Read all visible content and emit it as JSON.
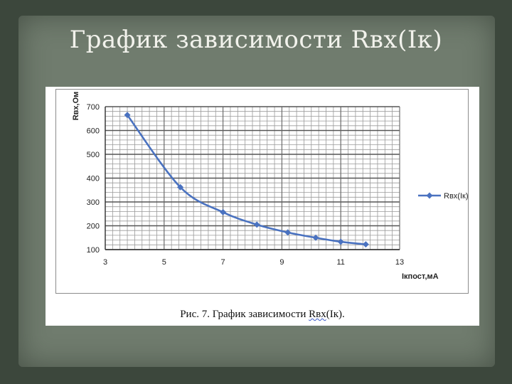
{
  "slide": {
    "title": "График зависимости Rвх(Iк)",
    "caption_prefix": "Рис. 7. График зависимости ",
    "caption_term": "Rвх",
    "caption_suffix": "(Iк).",
    "colors": {
      "background": "#3c473c",
      "panel": "#707c6e",
      "series": "#4a72c0"
    }
  },
  "chart_data": {
    "type": "line",
    "xlabel": "Iкпост,мА",
    "ylabel": "Rвх,Ом",
    "xlim": [
      3,
      13
    ],
    "ylim": [
      100,
      700
    ],
    "xticks": [
      3,
      5,
      7,
      9,
      11,
      13
    ],
    "yticks": [
      100,
      200,
      300,
      400,
      500,
      600,
      700
    ],
    "grid": true,
    "legend_position": "right",
    "series": [
      {
        "name": "Rвх(Iк)",
        "color": "#4a72c0",
        "marker": "diamond",
        "x": [
          3.75,
          5.55,
          7.0,
          8.15,
          9.2,
          10.15,
          11.0,
          11.85
        ],
        "y": [
          665,
          362,
          257,
          205,
          172,
          150,
          133,
          122
        ]
      }
    ]
  }
}
